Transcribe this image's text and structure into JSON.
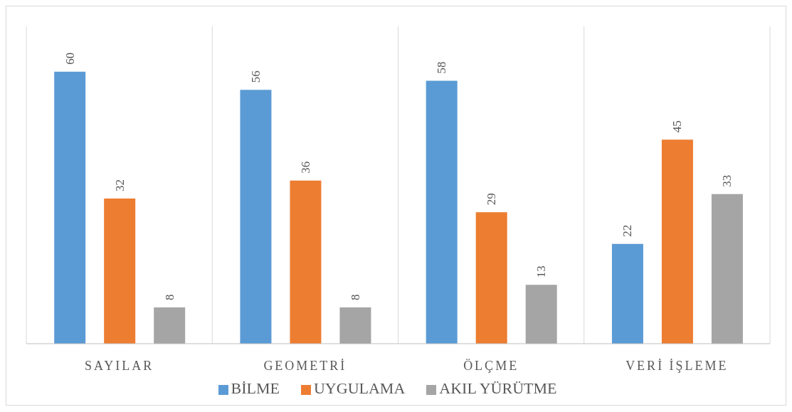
{
  "chart_data": {
    "type": "bar",
    "categories": [
      "SAYILAR",
      "GEOMETRİ",
      "ÖLÇME",
      "VERİ İŞLEME"
    ],
    "series": [
      {
        "name": "BİLME",
        "color": "#5b9bd5",
        "values": [
          60,
          56,
          58,
          22
        ]
      },
      {
        "name": "UYGULAMA",
        "color": "#ed7d31",
        "values": [
          32,
          36,
          29,
          45
        ]
      },
      {
        "name": "AKIL YÜRÜTME",
        "color": "#a5a5a5",
        "values": [
          8,
          8,
          13,
          33
        ]
      }
    ],
    "data_labels": true,
    "grid": "x",
    "legend": "bottom"
  }
}
